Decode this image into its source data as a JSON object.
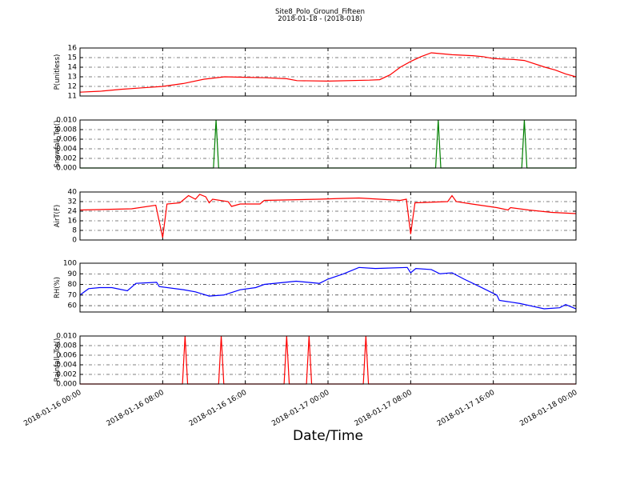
{
  "figure": {
    "title": "Site8_Polo_Ground_Fifteen",
    "subtitle": "2018-01-18 - (2018-018)",
    "xlabel": "Date/Time"
  },
  "chart_data": [
    {
      "type": "line",
      "ylabel": "P(unitless)",
      "color": "#ff0000",
      "ylim": [
        11,
        16
      ],
      "yticks": [
        11,
        12,
        13,
        14,
        15,
        16
      ],
      "grid": true,
      "xlim": [
        "2018-01-16 00:00",
        "2018-01-18 00:00"
      ],
      "xticks": [
        "2018-01-16 00:00",
        "2018-01-16 08:00",
        "2018-01-16 16:00",
        "2018-01-17 00:00",
        "2018-01-17 08:00",
        "2018-01-17 16:00",
        "2018-01-18 00:00"
      ],
      "x": [
        "2018-01-16 00:00",
        "2018-01-16 02:00",
        "2018-01-16 04:00",
        "2018-01-16 06:00",
        "2018-01-16 08:00",
        "2018-01-16 10:00",
        "2018-01-16 12:00",
        "2018-01-16 14:00",
        "2018-01-16 16:00",
        "2018-01-16 18:00",
        "2018-01-16 20:00",
        "2018-01-16 21:00",
        "2018-01-17 00:00",
        "2018-01-17 04:00",
        "2018-01-17 05:00",
        "2018-01-17 06:00",
        "2018-01-17 07:00",
        "2018-01-17 08:00",
        "2018-01-17 09:00",
        "2018-01-17 10:00",
        "2018-01-17 12:00",
        "2018-01-17 14:00",
        "2018-01-17 15:00",
        "2018-01-17 16:00",
        "2018-01-17 18:00",
        "2018-01-17 19:00",
        "2018-01-17 21:00",
        "2018-01-17 22:00",
        "2018-01-17 23:00",
        "2018-01-18 00:00"
      ],
      "values": [
        11.4,
        11.5,
        11.7,
        11.85,
        12.0,
        12.3,
        12.75,
        13.0,
        12.95,
        12.9,
        12.8,
        12.6,
        12.55,
        12.65,
        12.7,
        13.2,
        14.0,
        14.6,
        15.1,
        15.5,
        15.3,
        15.2,
        15.1,
        14.9,
        14.8,
        14.7,
        14.0,
        13.7,
        13.3,
        13.0
      ]
    },
    {
      "type": "line",
      "ylabel": "Snowfall_Tot()",
      "color": "#007f00",
      "ylim": [
        0,
        0.01
      ],
      "grid": true,
      "yticks": [
        {
          "value": 0,
          "label": "0.000"
        },
        {
          "value": 0.002,
          "label": "0.002"
        },
        {
          "value": 0.004,
          "label": "0.004"
        },
        {
          "value": 0.006,
          "label": "0.006"
        },
        {
          "value": 0.008,
          "label": "0.008"
        },
        {
          "value": 0.01,
          "label": "0.010"
        }
      ],
      "xlim": [
        "2018-01-16 00:00",
        "2018-01-18 00:00"
      ],
      "xticks": [
        "2018-01-16 00:00",
        "2018-01-16 08:00",
        "2018-01-16 16:00",
        "2018-01-17 00:00",
        "2018-01-17 08:00",
        "2018-01-17 16:00",
        "2018-01-18 00:00"
      ],
      "x": [
        "2018-01-16 00:00",
        "2018-01-16 12:55",
        "2018-01-16 13:10",
        "2018-01-16 13:25",
        "2018-01-17 10:25",
        "2018-01-17 10:40",
        "2018-01-17 10:55",
        "2018-01-17 18:45",
        "2018-01-17 19:00",
        "2018-01-17 19:15",
        "2018-01-18 00:00"
      ],
      "values": [
        0,
        0,
        0.01,
        0,
        0,
        0.01,
        0,
        0,
        0.01,
        0,
        0
      ]
    },
    {
      "type": "line",
      "ylabel": "AirT(F)",
      "color": "#ff0000",
      "ylim": [
        0,
        40
      ],
      "yticks": [
        0,
        8,
        16,
        24,
        32,
        40
      ],
      "grid": true,
      "xlim": [
        "2018-01-16 00:00",
        "2018-01-18 00:00"
      ],
      "xticks": [
        "2018-01-16 00:00",
        "2018-01-16 08:00",
        "2018-01-16 16:00",
        "2018-01-17 00:00",
        "2018-01-17 08:00",
        "2018-01-17 16:00",
        "2018-01-18 00:00"
      ],
      "x": [
        "2018-01-16 00:00",
        "2018-01-16 05:00",
        "2018-01-16 07:20",
        "2018-01-16 08:00",
        "2018-01-16 08:25",
        "2018-01-16 09:40",
        "2018-01-16 10:30",
        "2018-01-16 11:10",
        "2018-01-16 11:35",
        "2018-01-16 12:10",
        "2018-01-16 12:30",
        "2018-01-16 12:50",
        "2018-01-16 14:20",
        "2018-01-16 14:40",
        "2018-01-16 15:30",
        "2018-01-16 17:25",
        "2018-01-16 17:50",
        "2018-01-16 23:10",
        "2018-01-17 00:50",
        "2018-01-17 03:00",
        "2018-01-17 07:00",
        "2018-01-17 07:35",
        "2018-01-17 08:00",
        "2018-01-17 08:25",
        "2018-01-17 11:35",
        "2018-01-17 12:00",
        "2018-01-17 12:25",
        "2018-01-17 13:55",
        "2018-01-17 16:20",
        "2018-01-17 17:25",
        "2018-01-17 17:40",
        "2018-01-17 19:25",
        "2018-01-17 21:40",
        "2018-01-18 00:00"
      ],
      "values": [
        25,
        26,
        29,
        2,
        30,
        31,
        37,
        34,
        38,
        36,
        31,
        34,
        32,
        28,
        30,
        30,
        33,
        34,
        34.5,
        35,
        33,
        34,
        5,
        31,
        32,
        37,
        32,
        30,
        27,
        25,
        27,
        25,
        23,
        22
      ]
    },
    {
      "type": "line",
      "ylabel": "RH(%)",
      "color": "#0000ff",
      "ylim": [
        54,
        100
      ],
      "yticks": [
        60,
        70,
        80,
        90,
        100
      ],
      "grid": true,
      "xlim": [
        "2018-01-16 00:00",
        "2018-01-18 00:00"
      ],
      "xticks": [
        "2018-01-16 00:00",
        "2018-01-16 08:00",
        "2018-01-16 16:00",
        "2018-01-17 00:00",
        "2018-01-17 08:00",
        "2018-01-17 16:00",
        "2018-01-18 00:00"
      ],
      "x": [
        "2018-01-16 00:00",
        "2018-01-16 00:50",
        "2018-01-16 01:55",
        "2018-01-16 03:05",
        "2018-01-16 04:35",
        "2018-01-16 05:25",
        "2018-01-16 07:25",
        "2018-01-16 07:40",
        "2018-01-16 10:00",
        "2018-01-16 11:10",
        "2018-01-16 12:30",
        "2018-01-16 13:55",
        "2018-01-16 15:30",
        "2018-01-16 17:00",
        "2018-01-16 17:50",
        "2018-01-16 20:55",
        "2018-01-16 23:10",
        "2018-01-17 00:00",
        "2018-01-17 01:30",
        "2018-01-17 03:00",
        "2018-01-17 04:35",
        "2018-01-17 07:40",
        "2018-01-17 08:00",
        "2018-01-17 08:30",
        "2018-01-17 10:00",
        "2018-01-17 10:50",
        "2018-01-17 12:00",
        "2018-01-17 13:10",
        "2018-01-17 14:40",
        "2018-01-17 16:20",
        "2018-01-17 16:35",
        "2018-01-17 18:35",
        "2018-01-17 20:55",
        "2018-01-17 22:25",
        "2018-01-17 23:00",
        "2018-01-18 00:00"
      ],
      "values": [
        70,
        76,
        77,
        77,
        74,
        81,
        82,
        78,
        75,
        73,
        69,
        70,
        75,
        77,
        80,
        83,
        81,
        85,
        90,
        96,
        95,
        96,
        91,
        95,
        94,
        90,
        91,
        85,
        78,
        70,
        65,
        62,
        57,
        58,
        61,
        57
      ]
    },
    {
      "type": "line",
      "ylabel": "Rainfall_Tot()",
      "color": "#ff0000",
      "ylim": [
        0,
        0.01
      ],
      "grid": true,
      "yticks": [
        {
          "value": 0,
          "label": "0.000"
        },
        {
          "value": 0.002,
          "label": "0.002"
        },
        {
          "value": 0.004,
          "label": "0.004"
        },
        {
          "value": 0.006,
          "label": "0.006"
        },
        {
          "value": 0.008,
          "label": "0.008"
        },
        {
          "value": 0.01,
          "label": "0.010"
        }
      ],
      "xlim": [
        "2018-01-16 00:00",
        "2018-01-18 00:00"
      ],
      "xticks": [
        "2018-01-16 00:00",
        "2018-01-16 08:00",
        "2018-01-16 16:00",
        "2018-01-17 00:00",
        "2018-01-17 08:00",
        "2018-01-17 16:00",
        "2018-01-18 00:00"
      ],
      "x": [
        "2018-01-16 00:00",
        "2018-01-16 09:55",
        "2018-01-16 10:10",
        "2018-01-16 10:25",
        "2018-01-16 13:25",
        "2018-01-16 13:40",
        "2018-01-16 13:55",
        "2018-01-16 19:45",
        "2018-01-16 20:00",
        "2018-01-16 20:15",
        "2018-01-16 21:55",
        "2018-01-16 22:10",
        "2018-01-16 22:25",
        "2018-01-17 03:25",
        "2018-01-17 03:40",
        "2018-01-17 03:55",
        "2018-01-18 00:00"
      ],
      "values": [
        0,
        0,
        0.01,
        0,
        0,
        0.01,
        0,
        0,
        0.01,
        0,
        0,
        0.01,
        0,
        0,
        0.01,
        0,
        0
      ]
    }
  ]
}
